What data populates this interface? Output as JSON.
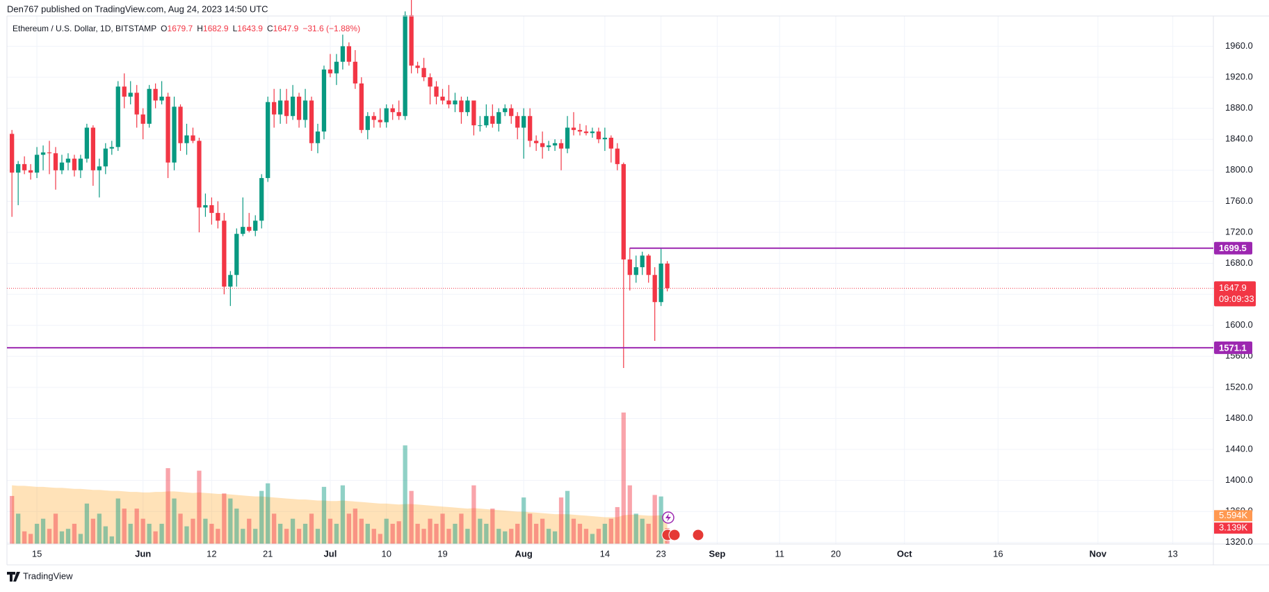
{
  "header": {
    "publisher": "Den767 published on TradingView.com, Aug 24, 2023 14:50 UTC",
    "symbol": "Ethereum / U.S. Dollar, 1D, BITSTAMP",
    "ohlc": [
      {
        "key": "O",
        "value": "1679.7"
      },
      {
        "key": "H",
        "value": "1682.9"
      },
      {
        "key": "L",
        "value": "1643.9"
      },
      {
        "key": "C",
        "value": "1647.9"
      }
    ],
    "change": "−31.6 (−1.88%)"
  },
  "footer": "TradingView",
  "chart_data": {
    "type": "candlestick",
    "up_color": "#089981",
    "down_color": "#f23645",
    "grid": true,
    "ylim": [
      1318,
      1999
    ],
    "yticks": [
      {
        "value": 1320,
        "label": "1320.0"
      },
      {
        "value": 1360,
        "label": "1360.0"
      },
      {
        "value": 1400,
        "label": "1400.0"
      },
      {
        "value": 1440,
        "label": "1440.0"
      },
      {
        "value": 1480,
        "label": "1480.0"
      },
      {
        "value": 1520,
        "label": "1520.0"
      },
      {
        "value": 1560,
        "label": "1560.0"
      },
      {
        "value": 1600,
        "label": "1600.0"
      },
      {
        "value": 1640,
        "label": "1640.0"
      },
      {
        "value": 1680,
        "label": "1680.0"
      },
      {
        "value": 1720,
        "label": "1720.0"
      },
      {
        "value": 1760,
        "label": "1760.0"
      },
      {
        "value": 1800,
        "label": "1800.0"
      },
      {
        "value": 1840,
        "label": "1840.0"
      },
      {
        "value": 1880,
        "label": "1880.0"
      },
      {
        "value": 1920,
        "label": "1920.0"
      },
      {
        "value": 1960,
        "label": "1960.0"
      }
    ],
    "xlim": [
      -0.8,
      192.5
    ],
    "xticks": [
      {
        "value": 4,
        "label": "15"
      },
      {
        "value": 21,
        "label": "Jun"
      },
      {
        "value": 32,
        "label": "12"
      },
      {
        "value": 41,
        "label": "21"
      },
      {
        "value": 51,
        "label": "Jul"
      },
      {
        "value": 60,
        "label": "10"
      },
      {
        "value": 69,
        "label": "19"
      },
      {
        "value": 82,
        "label": "Aug"
      },
      {
        "value": 95,
        "label": "14"
      },
      {
        "value": 104,
        "label": "23"
      },
      {
        "value": 113,
        "label": "Sep"
      },
      {
        "value": 123,
        "label": "11"
      },
      {
        "value": 132,
        "label": "20"
      },
      {
        "value": 143,
        "label": "Oct"
      },
      {
        "value": 158,
        "label": "16"
      },
      {
        "value": 174,
        "label": "Nov"
      },
      {
        "value": 186,
        "label": "13"
      }
    ],
    "open": [
      1847,
      1797,
      1808,
      1800,
      1797,
      1820,
      1823,
      1822,
      1800,
      1810,
      1815,
      1800,
      1815,
      1855,
      1800,
      1805,
      1828,
      1830,
      1908,
      1895,
      1900,
      1872,
      1860,
      1905,
      1890,
      1895,
      1810,
      1882,
      1835,
      1845,
      1838,
      1752,
      1755,
      1745,
      1735,
      1650,
      1665,
      1718,
      1727,
      1722,
      1735,
      1790,
      1888,
      1872,
      1890,
      1870,
      1895,
      1865,
      1890,
      1835,
      1850,
      1930,
      1925,
      1940,
      1960,
      1940,
      1912,
      1852,
      1870,
      1865,
      1862,
      1880,
      1875,
      1870,
      2000,
      1935,
      1932,
      1920,
      1908,
      1895,
      1890,
      1885,
      1890,
      1875,
      1890,
      1858,
      1858,
      1870,
      1860,
      1875,
      1880,
      1870,
      1855,
      1870,
      1838,
      1835,
      1830,
      1832,
      1835,
      1828,
      1855,
      1852,
      1850,
      1848,
      1850,
      1840,
      1842,
      1828,
      1808,
      1685,
      1665,
      1675,
      1690,
      1665,
      1630,
      1679.7
    ],
    "high": [
      1852,
      1812,
      1818,
      1808,
      1830,
      1832,
      1838,
      1830,
      1820,
      1822,
      1820,
      1820,
      1860,
      1858,
      1815,
      1835,
      1838,
      1915,
      1925,
      1915,
      1910,
      1880,
      1910,
      1912,
      1915,
      1900,
      1895,
      1885,
      1860,
      1855,
      1842,
      1770,
      1765,
      1760,
      1745,
      1670,
      1725,
      1765,
      1745,
      1742,
      1795,
      1895,
      1905,
      1905,
      1905,
      1910,
      1900,
      1905,
      1895,
      1860,
      1935,
      1950,
      1950,
      1975,
      1965,
      1955,
      1920,
      1875,
      1875,
      1880,
      1885,
      1885,
      1890,
      2005,
      2030,
      1940,
      1945,
      1925,
      1915,
      1905,
      1910,
      1900,
      1895,
      1895,
      1890,
      1870,
      1885,
      1885,
      1880,
      1885,
      1885,
      1875,
      1880,
      1880,
      1845,
      1850,
      1838,
      1840,
      1840,
      1870,
      1875,
      1860,
      1858,
      1855,
      1855,
      1855,
      1845,
      1835,
      1810,
      1700,
      1690,
      1695,
      1692,
      1675,
      1700,
      1682.9
    ],
    "low": [
      1740,
      1755,
      1795,
      1788,
      1790,
      1800,
      1795,
      1775,
      1795,
      1800,
      1792,
      1790,
      1810,
      1780,
      1765,
      1795,
      1820,
      1825,
      1880,
      1885,
      1855,
      1840,
      1855,
      1880,
      1885,
      1790,
      1800,
      1825,
      1820,
      1835,
      1720,
      1740,
      1730,
      1725,
      1640,
      1625,
      1650,
      1715,
      1720,
      1715,
      1725,
      1785,
      1855,
      1860,
      1860,
      1865,
      1855,
      1855,
      1825,
      1822,
      1840,
      1920,
      1910,
      1930,
      1935,
      1905,
      1848,
      1840,
      1855,
      1855,
      1855,
      1865,
      1865,
      1865,
      1925,
      1925,
      1915,
      1885,
      1885,
      1885,
      1880,
      1875,
      1860,
      1870,
      1845,
      1850,
      1855,
      1855,
      1850,
      1870,
      1860,
      1840,
      1815,
      1830,
      1825,
      1815,
      1825,
      1825,
      1800,
      1822,
      1845,
      1845,
      1845,
      1842,
      1835,
      1825,
      1810,
      1800,
      1545,
      1645,
      1655,
      1665,
      1655,
      1580,
      1625,
      1643.9
    ],
    "close": [
      1797,
      1808,
      1800,
      1797,
      1820,
      1823,
      1822,
      1800,
      1810,
      1815,
      1800,
      1815,
      1855,
      1800,
      1805,
      1828,
      1830,
      1908,
      1895,
      1900,
      1872,
      1860,
      1905,
      1890,
      1895,
      1810,
      1882,
      1835,
      1845,
      1838,
      1752,
      1755,
      1745,
      1735,
      1650,
      1665,
      1718,
      1727,
      1722,
      1735,
      1790,
      1888,
      1872,
      1890,
      1870,
      1895,
      1865,
      1890,
      1835,
      1850,
      1930,
      1925,
      1940,
      1960,
      1940,
      1912,
      1852,
      1870,
      1865,
      1862,
      1880,
      1875,
      1870,
      2000,
      1935,
      1932,
      1920,
      1908,
      1895,
      1890,
      1885,
      1890,
      1875,
      1890,
      1858,
      1858,
      1870,
      1860,
      1875,
      1880,
      1870,
      1855,
      1870,
      1838,
      1835,
      1830,
      1832,
      1835,
      1828,
      1855,
      1852,
      1850,
      1848,
      1850,
      1840,
      1842,
      1828,
      1808,
      1685,
      1665,
      1675,
      1690,
      1665,
      1630,
      1679.7,
      1647.9
    ],
    "volume": [
      9.5,
      6,
      2.5,
      2,
      4,
      5,
      3,
      6,
      2.5,
      3,
      4,
      2,
      8,
      5,
      6,
      3.5,
      1.5,
      9,
      7,
      4,
      7,
      5,
      4,
      2.5,
      4,
      15,
      9,
      6,
      3.5,
      5,
      14.5,
      5,
      4,
      3,
      10,
      9,
      7,
      3,
      5,
      3,
      10.5,
      12,
      6,
      4,
      3,
      5,
      3,
      4,
      6,
      3,
      11.3,
      5,
      4,
      11.6,
      6,
      7,
      5,
      4,
      3,
      2,
      5,
      4,
      4.5,
      19.5,
      10.5,
      4,
      3,
      5,
      4,
      6,
      3,
      4,
      6,
      3,
      11.6,
      5,
      4,
      7,
      3,
      2.5,
      3,
      4,
      9.2,
      6,
      4,
      5,
      3,
      2.5,
      9.2,
      10.5,
      5,
      4,
      3,
      2,
      3,
      4,
      5,
      7.3,
      26,
      11.6,
      6,
      5,
      4,
      9.7,
      9.4,
      3.139
    ],
    "volume_ma": [
      11.6,
      11.5,
      11.5,
      11.4,
      11.3,
      11.3,
      11.2,
      11.1,
      11.1,
      11.0,
      10.9,
      10.9,
      10.8,
      10.7,
      10.7,
      10.6,
      10.5,
      10.5,
      10.4,
      10.3,
      10.3,
      10.2,
      10.2,
      10.3,
      10.3,
      10.4,
      10.4,
      10.3,
      10.2,
      10.1,
      10.2,
      10.1,
      10.0,
      9.9,
      9.9,
      9.8,
      9.7,
      9.6,
      9.5,
      9.4,
      9.4,
      9.3,
      9.2,
      9.1,
      9.0,
      8.9,
      8.8,
      8.8,
      8.7,
      8.6,
      8.6,
      8.5,
      8.5,
      8.6,
      8.5,
      8.4,
      8.3,
      8.2,
      8.1,
      8.0,
      8.0,
      7.9,
      7.8,
      7.9,
      7.9,
      7.8,
      7.7,
      7.6,
      7.5,
      7.4,
      7.3,
      7.2,
      7.1,
      7.0,
      7.1,
      7.0,
      6.9,
      6.8,
      6.7,
      6.6,
      6.5,
      6.4,
      6.4,
      6.3,
      6.2,
      6.1,
      6.0,
      5.9,
      5.9,
      5.9,
      5.8,
      5.7,
      5.6,
      5.5,
      5.4,
      5.3,
      5.3,
      5.3,
      5.7,
      5.8,
      5.8,
      5.7,
      5.6,
      5.6,
      5.7,
      5.594
    ],
    "volume_label": "3.139K",
    "volume_ma_label": "5.594K",
    "levels": [
      {
        "value": 1699.5,
        "x0": 99,
        "color": "#9c27b0"
      },
      {
        "value": 1571.1,
        "color": "#9c27b0"
      }
    ],
    "last_price": {
      "value": 1647.9,
      "countdown": "09:09:33"
    }
  }
}
